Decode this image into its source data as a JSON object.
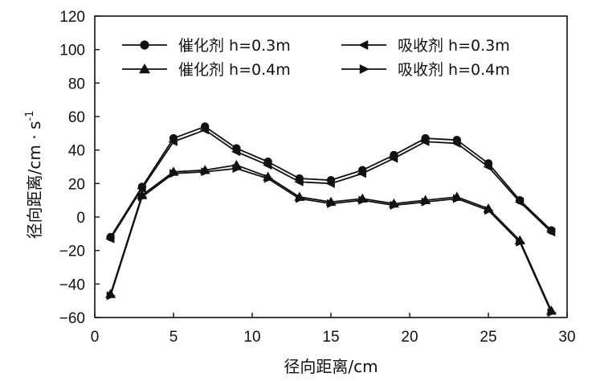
{
  "chart_data": {
    "type": "line",
    "title": "",
    "xlabel": "径向距离/cm",
    "ylabel": "径向距离/cm · s",
    "ylabel_superscript": "-1",
    "xlim": [
      0,
      30
    ],
    "ylim": [
      -60,
      120
    ],
    "xticks": [
      0,
      5,
      10,
      15,
      20,
      25,
      30
    ],
    "yticks": [
      -60,
      -40,
      -20,
      0,
      20,
      40,
      60,
      80,
      100,
      120
    ],
    "grid": false,
    "legend_placement": "top",
    "series": [
      {
        "name": "催化剂 h=0.3m",
        "marker": "circle",
        "x": [
          1,
          3,
          5,
          7,
          9,
          11,
          13,
          15,
          17,
          19,
          21,
          23,
          25,
          27,
          29
        ],
        "values": [
          -12,
          18,
          47,
          54,
          41,
          33,
          23,
          22,
          28,
          37,
          47,
          46,
          32,
          10,
          -8
        ]
      },
      {
        "name": "吸收剂 h=0.3m",
        "marker": "triangle-left",
        "x": [
          1,
          3,
          5,
          7,
          9,
          11,
          13,
          15,
          17,
          19,
          21,
          23,
          25,
          27,
          29
        ],
        "values": [
          -13,
          17,
          45,
          52,
          39,
          31,
          21,
          20,
          26,
          35,
          45,
          44,
          30,
          9,
          -9
        ]
      },
      {
        "name": "催化剂 h=0.4m",
        "marker": "triangle-up",
        "x": [
          1,
          3,
          5,
          7,
          9,
          11,
          13,
          15,
          17,
          19,
          21,
          23,
          25,
          27,
          29
        ],
        "values": [
          -46,
          13,
          27,
          28,
          31,
          24,
          12,
          9,
          11,
          8,
          10,
          12,
          5,
          -14,
          -56
        ]
      },
      {
        "name": "吸收剂 h=0.4m",
        "marker": "triangle-right",
        "x": [
          1,
          3,
          5,
          7,
          9,
          11,
          13,
          15,
          17,
          19,
          21,
          23,
          25,
          27,
          29
        ],
        "values": [
          -47,
          12,
          26,
          27,
          29,
          23,
          11,
          8,
          10,
          7,
          9,
          11,
          4,
          -15,
          -57
        ]
      }
    ]
  }
}
